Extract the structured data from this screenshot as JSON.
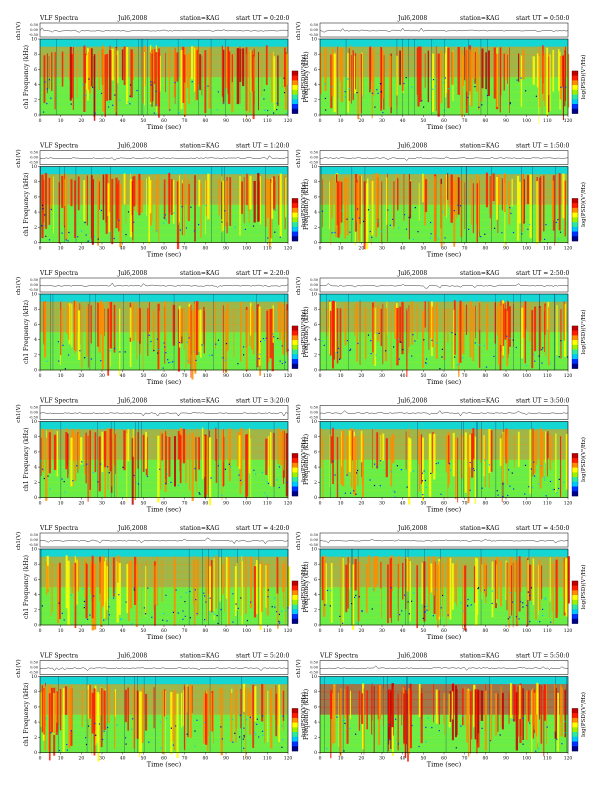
{
  "figure": {
    "header_prefix": "VLF Spectra",
    "date": "Jul6,2008",
    "station": "station=KAG",
    "start_prefix": "start UT ="
  },
  "colorscale": [
    "#00008b",
    "#0030ff",
    "#00c8ff",
    "#2ee8a0",
    "#9ff000",
    "#ffff00",
    "#ff8c00",
    "#ff1a00",
    "#c00000"
  ],
  "chart_data": [
    {
      "type": "heatmap",
      "panel": "row1-left",
      "header": "VLF Spectra",
      "date": "Jul6,2008",
      "station": "station=KAG",
      "start_ut": "0:20:0",
      "top_ylabel": "ch1(V)",
      "ylabel": "ch1 Frequency (kHz)",
      "xlabel": "Time (sec)",
      "cbar_label": "log(PSD)(V²/Hz)",
      "xlim": [
        0,
        120
      ],
      "ylim_khz": [
        0,
        10
      ],
      "xticks": [
        0,
        10,
        20,
        30,
        40,
        50,
        60,
        70,
        80,
        90,
        100,
        110,
        120
      ],
      "yticks": [
        0,
        2,
        4,
        6,
        8,
        10
      ],
      "top_yticks": [
        "0.50",
        "0.00",
        "-0.50"
      ],
      "intensity": 0.72
    },
    {
      "type": "heatmap",
      "panel": "row1-right",
      "header": "",
      "date": "Jul6,2008",
      "station": "station=KAG",
      "start_ut": "0:50:0",
      "top_ylabel": "ch1(V)",
      "ylabel": "Frequency (kHz)",
      "xlabel": "Time (sec)",
      "cbar_label": "log(PSD)(V²/Hz)",
      "xlim": [
        0,
        120
      ],
      "ylim_khz": [
        0,
        10
      ],
      "xticks": [
        0,
        10,
        20,
        30,
        40,
        50,
        60,
        70,
        80,
        90,
        100,
        110,
        120
      ],
      "yticks": [
        0,
        2,
        4,
        6,
        8,
        10
      ],
      "top_yticks": [
        "0.50",
        "0.00",
        "-0.50"
      ],
      "intensity": 0.74
    },
    {
      "type": "heatmap",
      "panel": "row2-left",
      "header": "VLF Spectra",
      "date": "Jul6,2008",
      "station": "station=KAG",
      "start_ut": "1:20:0",
      "top_ylabel": "ch1(V)",
      "ylabel": "ch1 Frequency (kHz)",
      "xlabel": "Time (sec)",
      "cbar_label": "log(PSD)(V²/Hz)",
      "xlim": [
        0,
        120
      ],
      "ylim_khz": [
        0,
        10
      ],
      "xticks": [
        0,
        10,
        20,
        30,
        40,
        50,
        60,
        70,
        80,
        90,
        100,
        110,
        120
      ],
      "yticks": [
        0,
        2,
        4,
        6,
        8,
        10
      ],
      "top_yticks": [
        "0.50",
        "0.00",
        "-0.50"
      ],
      "intensity": 0.7
    },
    {
      "type": "heatmap",
      "panel": "row2-right",
      "header": "",
      "date": "Jul6,2008",
      "station": "station=KAG",
      "start_ut": "1:50:0",
      "top_ylabel": "ch1(V)",
      "ylabel": "Frequency (kHz)",
      "xlabel": "Time (sec)",
      "cbar_label": "log(PSD)(V²/Hz)",
      "xlim": [
        0,
        120
      ],
      "ylim_khz": [
        0,
        10
      ],
      "xticks": [
        0,
        10,
        20,
        30,
        40,
        50,
        60,
        70,
        80,
        90,
        100,
        110,
        120
      ],
      "yticks": [
        0,
        2,
        4,
        6,
        8,
        10
      ],
      "top_yticks": [
        "0.50",
        "0.00",
        "-0.50"
      ],
      "intensity": 0.66
    },
    {
      "type": "heatmap",
      "panel": "row3-left",
      "header": "VLF Spectra",
      "date": "Jul6,2008",
      "station": "station=KAG",
      "start_ut": "2:20:0",
      "top_ylabel": "ch1(V)",
      "ylabel": "ch1 Frequency (kHz)",
      "xlabel": "Time (sec)",
      "cbar_label": "log(PSD)(V²/Hz)",
      "xlim": [
        0,
        120
      ],
      "ylim_khz": [
        0,
        10
      ],
      "xticks": [
        0,
        10,
        20,
        30,
        40,
        50,
        60,
        70,
        80,
        90,
        100,
        110,
        120
      ],
      "yticks": [
        0,
        2,
        4,
        6,
        8,
        10
      ],
      "top_yticks": [
        "0.50",
        "0.00",
        "-0.50"
      ],
      "intensity": 0.6
    },
    {
      "type": "heatmap",
      "panel": "row3-right",
      "header": "",
      "date": "Jul6,2008",
      "station": "station=KAG",
      "start_ut": "2:50:0",
      "top_ylabel": "ch1(V)",
      "ylabel": "Frequency (kHz)",
      "xlabel": "Time (sec)",
      "cbar_label": "log(PSD)(V²/Hz)",
      "xlim": [
        0,
        120
      ],
      "ylim_khz": [
        0,
        10
      ],
      "xticks": [
        0,
        10,
        20,
        30,
        40,
        50,
        60,
        70,
        80,
        90,
        100,
        110,
        120
      ],
      "yticks": [
        0,
        2,
        4,
        6,
        8,
        10
      ],
      "top_yticks": [
        "0.50",
        "0.00",
        "-0.50"
      ],
      "intensity": 0.6
    },
    {
      "type": "heatmap",
      "panel": "row4-left",
      "header": "VLF Spectra",
      "date": "Jul6,2008",
      "station": "station=KAG",
      "start_ut": "3:20:0",
      "top_ylabel": "ch1(V)",
      "ylabel": "ch1 Frequency (kHz)",
      "xlabel": "Time (sec)",
      "cbar_label": "log(PSD)(V²/Hz)",
      "xlim": [
        0,
        120
      ],
      "ylim_khz": [
        0,
        10
      ],
      "xticks": [
        0,
        10,
        20,
        30,
        40,
        50,
        60,
        70,
        80,
        90,
        100,
        110,
        120
      ],
      "yticks": [
        0,
        2,
        4,
        6,
        8,
        10
      ],
      "top_yticks": [
        "0.50",
        "0.00",
        "-0.50"
      ],
      "intensity": 0.68
    },
    {
      "type": "heatmap",
      "panel": "row4-right",
      "header": "",
      "date": "Jul6,2008",
      "station": "station=KAG",
      "start_ut": "3:50:0",
      "top_ylabel": "ch1(V)",
      "ylabel": "Frequency (kHz)",
      "xlabel": "Time (sec)",
      "cbar_label": "log(PSD)(V²/Hz)",
      "xlim": [
        0,
        120
      ],
      "ylim_khz": [
        0,
        10
      ],
      "xticks": [
        0,
        10,
        20,
        30,
        40,
        50,
        60,
        70,
        80,
        90,
        100,
        110,
        120
      ],
      "yticks": [
        0,
        2,
        4,
        6,
        8,
        10
      ],
      "top_yticks": [
        "0.50",
        "0.00",
        "-0.50"
      ],
      "intensity": 0.5
    },
    {
      "type": "heatmap",
      "panel": "row5-left",
      "header": "VLF Spectra",
      "date": "Jul6,2008",
      "station": "station=KAG",
      "start_ut": "4:20:0",
      "top_ylabel": "ch1(V)",
      "ylabel": "ch1 Frequency (kHz)",
      "xlabel": "Time (sec)",
      "cbar_label": "log(PSD)(V²/Hz)",
      "xlim": [
        0,
        120
      ],
      "ylim_khz": [
        0,
        10
      ],
      "xticks": [
        0,
        10,
        20,
        30,
        40,
        50,
        60,
        70,
        80,
        90,
        100,
        110,
        120
      ],
      "yticks": [
        0,
        2,
        4,
        6,
        8,
        10
      ],
      "top_yticks": [
        "0.50",
        "0.00",
        "-0.50"
      ],
      "intensity": 0.45
    },
    {
      "type": "heatmap",
      "panel": "row5-right",
      "header": "",
      "date": "Jul6,2008",
      "station": "station=KAG",
      "start_ut": "4:50:0",
      "top_ylabel": "ch1(V)",
      "ylabel": "Frequency (kHz)",
      "xlabel": "Time (sec)",
      "cbar_label": "log(PSD)(V²/Hz)",
      "xlim": [
        0,
        120
      ],
      "ylim_khz": [
        0,
        10
      ],
      "xticks": [
        0,
        10,
        20,
        30,
        40,
        50,
        60,
        70,
        80,
        90,
        100,
        110,
        120
      ],
      "yticks": [
        0,
        2,
        4,
        6,
        8,
        10
      ],
      "top_yticks": [
        "0.50",
        "0.00",
        "-0.50"
      ],
      "intensity": 0.55
    },
    {
      "type": "heatmap",
      "panel": "row6-left",
      "header": "VLF Spectra",
      "date": "Jul6,2008",
      "station": "station=KAG",
      "start_ut": "5:20:0",
      "top_ylabel": "ch1(V)",
      "ylabel": "ch1 Frequency (kHz)",
      "xlabel": "Time (sec)",
      "cbar_label": "log(PSD)(V²/Hz)",
      "xlim": [
        0,
        120
      ],
      "ylim_khz": [
        0,
        10
      ],
      "xticks": [
        0,
        10,
        20,
        30,
        40,
        50,
        60,
        70,
        80,
        90,
        100,
        110,
        120
      ],
      "yticks": [
        0,
        2,
        4,
        6,
        8,
        10
      ],
      "top_yticks": [
        "0.50",
        "0.00",
        "-0.50"
      ],
      "intensity": 0.62
    },
    {
      "type": "heatmap",
      "panel": "row6-right",
      "header": "VLF Spectra",
      "date": "Jul6,2008",
      "station": "station=KAG",
      "start_ut": "5:50:0",
      "top_ylabel": "ch1(V)",
      "ylabel": "Frequency (kHz)",
      "xlabel": "Time (sec)",
      "cbar_label": "log(PSD)(V²/Hz)",
      "xlim": [
        0,
        120
      ],
      "ylim_khz": [
        0,
        10
      ],
      "xticks": [
        0,
        10,
        20,
        30,
        40,
        50,
        60,
        70,
        80,
        90,
        100,
        110,
        120
      ],
      "yticks": [
        0,
        2,
        4,
        6,
        8,
        10
      ],
      "top_yticks": [
        "0.50",
        "0.00",
        "-0.50"
      ],
      "intensity": 0.8
    }
  ]
}
